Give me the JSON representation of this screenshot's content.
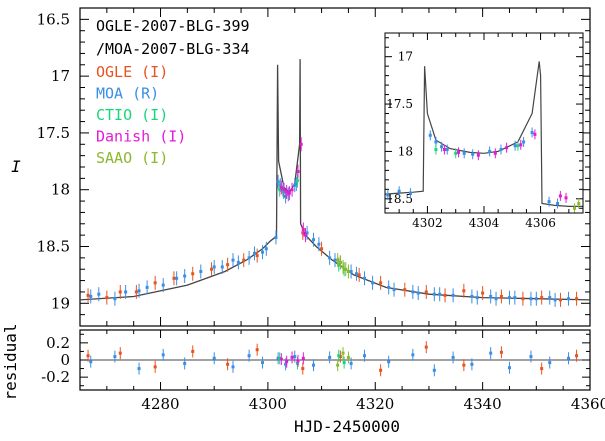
{
  "chart_data": [
    {
      "type": "scatter",
      "panel": "main",
      "title_lines": [
        "OGLE-2007-BLG-399",
        "/MOA-2007-BLG-334"
      ],
      "xlabel": "HJD-2450000",
      "ylabel": "I",
      "xlim": [
        4265,
        4360
      ],
      "ylim": [
        19.2,
        16.4
      ],
      "y_inverted": true,
      "xticks": [
        4280,
        4300,
        4320,
        4340,
        4360
      ],
      "yticks": [
        16.5,
        17,
        17.5,
        18,
        18.5,
        19
      ],
      "ytick_labels": [
        "16.5",
        "17",
        "17.5",
        "18",
        "18.5",
        "19"
      ],
      "legend_placement": "upper-left",
      "series": [
        {
          "name": "OGLE",
          "filter": "I",
          "color": "#e8531f",
          "x": [
            4266.5,
            4270.0,
            4272.5,
            4275.5,
            4279.0,
            4282.5,
            4286.0,
            4289.5,
            4292.5,
            4295.5,
            4298.0,
            4306.5,
            4310.0,
            4313.5,
            4317.0,
            4321.0,
            4325.5,
            4329.5,
            4333.0,
            4336.5,
            4340.0,
            4343.5,
            4347.5,
            4351.0,
            4354.5,
            4357.5
          ],
          "y": [
            18.93,
            18.95,
            18.9,
            18.9,
            18.82,
            18.78,
            18.74,
            18.7,
            18.66,
            18.62,
            18.58,
            18.38,
            18.52,
            18.64,
            18.75,
            18.82,
            18.88,
            18.9,
            18.93,
            18.89,
            18.91,
            18.94,
            18.96,
            18.95,
            18.97,
            18.96
          ]
        },
        {
          "name": "MOA",
          "filter": "R",
          "color": "#3b8ee6",
          "x": [
            4267.0,
            4268.5,
            4271.5,
            4273.5,
            4276.0,
            4277.5,
            4280.5,
            4283.0,
            4284.5,
            4287.5,
            4290.0,
            4291.5,
            4293.5,
            4294.5,
            4296.5,
            4297.5,
            4299.0,
            4299.7,
            4301.5,
            4301.9,
            4302.3,
            4302.8,
            4303.3,
            4303.8,
            4305.0,
            4305.3,
            4307.3,
            4308.5,
            4309.5,
            4311.5,
            4312.5,
            4315.5,
            4316.5,
            4318.0,
            4319.5,
            4322.5,
            4323.5,
            4327.0,
            4328.0,
            4331.0,
            4332.0,
            4334.5,
            4338.0,
            4339.0,
            4341.5,
            4342.5,
            4345.0,
            4346.0,
            4349.0,
            4350.0,
            4352.5,
            4353.5,
            4356.0
          ],
          "y": [
            18.94,
            18.92,
            18.96,
            18.9,
            18.89,
            18.86,
            18.84,
            18.78,
            18.76,
            18.72,
            18.68,
            18.68,
            18.62,
            18.64,
            18.6,
            18.56,
            18.55,
            18.52,
            18.42,
            17.93,
            17.96,
            18.0,
            18.06,
            18.04,
            17.96,
            17.95,
            18.38,
            18.44,
            18.48,
            18.6,
            18.62,
            18.72,
            18.74,
            18.78,
            18.82,
            18.86,
            18.88,
            18.9,
            18.91,
            18.92,
            18.92,
            18.93,
            18.94,
            18.95,
            18.94,
            18.96,
            18.95,
            18.95,
            18.96,
            18.96,
            18.95,
            18.97,
            18.96
          ]
        },
        {
          "name": "CTIO",
          "filter": "I",
          "color": "#1ad67a",
          "x": [
            4302.2,
            4302.9,
            4305.5,
            4313.2,
            4314.2
          ],
          "y": [
            18.0,
            18.02,
            17.92,
            18.66,
            18.7
          ]
        },
        {
          "name": "Danish",
          "filter": "I",
          "color": "#e31ad6",
          "x": [
            4302.5,
            4303.0,
            4303.5,
            4304.0,
            4304.5,
            4305.6,
            4306.2,
            4306.6,
            4307.0
          ],
          "y": [
            17.98,
            18.0,
            18.02,
            18.03,
            18.0,
            17.84,
            17.6,
            18.35,
            18.4
          ]
        },
        {
          "name": "SAAO",
          "filter": "I",
          "color": "#8cb82e",
          "x": [
            4313.0,
            4313.5,
            4314.0,
            4314.5,
            4315.0
          ],
          "y": [
            18.62,
            18.64,
            18.68,
            18.7,
            18.72
          ]
        }
      ],
      "model": {
        "name": "model",
        "color": "#444444",
        "x": [
          4265,
          4275,
          4285,
          4292,
          4296,
          4299,
          4300.5,
          4301.6,
          4301.8,
          4302.0,
          4303.0,
          4304.0,
          4305.0,
          4305.9,
          4306.0,
          4306.1,
          4307.0,
          4309.0,
          4312.0,
          4316.0,
          4322.0,
          4330.0,
          4340.0,
          4350.0,
          4360.0
        ],
        "y": [
          18.97,
          18.94,
          18.84,
          18.72,
          18.62,
          18.52,
          18.45,
          18.41,
          16.9,
          17.75,
          17.98,
          18.02,
          17.95,
          17.6,
          16.85,
          18.3,
          18.4,
          18.5,
          18.62,
          18.75,
          18.86,
          18.92,
          18.95,
          18.96,
          18.97
        ]
      }
    },
    {
      "type": "scatter",
      "panel": "residual",
      "ylabel": "residual",
      "xlabel": "HJD-2450000",
      "xlim": [
        4265,
        4360
      ],
      "ylim": [
        -0.35,
        0.35
      ],
      "yticks": [
        0.2,
        0,
        -0.2
      ],
      "ytick_labels": [
        "0.2",
        "0",
        "-0.2"
      ],
      "xticks": [
        4280,
        4300,
        4320,
        4340,
        4360
      ],
      "xtick_labels": [
        "4280",
        "4300",
        "4320",
        "4340",
        "4360"
      ],
      "series": [
        {
          "name": "OGLE",
          "color": "#e8531f",
          "x": [
            4266.5,
            4272.5,
            4279.0,
            4286.0,
            4292.5,
            4298.0,
            4306.5,
            4313.5,
            4321.0,
            4329.5,
            4336.5,
            4343.5,
            4351.0,
            4357.5
          ],
          "y": [
            0.05,
            0.08,
            -0.08,
            0.1,
            -0.05,
            0.12,
            -0.1,
            0.04,
            -0.12,
            0.15,
            -0.06,
            0.09,
            -0.1,
            0.05
          ]
        },
        {
          "name": "MOA",
          "color": "#3b8ee6",
          "x": [
            4267.0,
            4271.5,
            4276.0,
            4280.5,
            4284.5,
            4290.0,
            4293.5,
            4296.5,
            4299.0,
            4301.9,
            4303.3,
            4305.0,
            4308.5,
            4311.5,
            4315.5,
            4318.0,
            4322.5,
            4327.0,
            4331.0,
            4334.5,
            4338.0,
            4341.5,
            4345.0,
            4349.0,
            4352.5,
            4356.0
          ],
          "y": [
            -0.02,
            0.04,
            -0.1,
            0.06,
            -0.04,
            0.02,
            -0.08,
            0.05,
            -0.03,
            0.02,
            -0.05,
            0.04,
            -0.06,
            0.03,
            -0.04,
            0.05,
            -0.02,
            0.06,
            -0.12,
            0.03,
            -0.05,
            0.08,
            -0.09,
            0.04,
            -0.03,
            0.02
          ]
        },
        {
          "name": "CTIO",
          "color": "#1ad67a",
          "x": [
            4302.2,
            4305.5,
            4313.2,
            4314.2
          ],
          "y": [
            0.02,
            -0.04,
            0.05,
            -0.03
          ]
        },
        {
          "name": "Danish",
          "color": "#e31ad6",
          "x": [
            4302.5,
            4303.5,
            4304.5,
            4305.6,
            4306.6
          ],
          "y": [
            0.01,
            -0.02,
            0.03,
            -0.01,
            0.02
          ]
        },
        {
          "name": "SAAO",
          "color": "#8cb82e",
          "x": [
            4313.0,
            4314.0,
            4315.0
          ],
          "y": [
            -0.06,
            0.08,
            0.03
          ]
        }
      ]
    },
    {
      "type": "scatter",
      "panel": "inset",
      "xlim": [
        4300.5,
        4307.5
      ],
      "ylim": [
        18.65,
        16.75
      ],
      "y_inverted": true,
      "xticks": [
        4302,
        4304,
        4306
      ],
      "xtick_labels": [
        "4302",
        "4304",
        "4306"
      ],
      "yticks": [
        17,
        17.5,
        18,
        18.5
      ],
      "ytick_labels": [
        "17",
        "17.5",
        "18",
        "18.5"
      ],
      "series": [
        {
          "name": "MOA",
          "color": "#3b8ee6",
          "x": [
            4300.6,
            4301.0,
            4301.4,
            4302.1,
            4302.3,
            4302.5,
            4302.7,
            4303.3,
            4303.6,
            4304.2,
            4304.6,
            4305.1,
            4305.4,
            4305.7,
            4306.3,
            4306.6
          ],
          "y": [
            18.46,
            18.42,
            18.44,
            17.83,
            17.9,
            17.95,
            17.98,
            18.02,
            18.03,
            18.0,
            17.98,
            17.94,
            17.9,
            17.8,
            18.53,
            18.55
          ]
        },
        {
          "name": "CTIO",
          "color": "#1ad67a",
          "x": [
            4302.3,
            4303.0,
            4305.2
          ],
          "y": [
            17.98,
            18.02,
            17.94
          ]
        },
        {
          "name": "Danish",
          "color": "#e31ad6",
          "x": [
            4302.6,
            4303.1,
            4303.8,
            4304.4,
            4304.8,
            4305.3,
            4305.8,
            4306.7,
            4306.9
          ],
          "y": [
            17.98,
            18.01,
            18.04,
            18.02,
            17.96,
            17.93,
            17.82,
            18.47,
            18.49
          ]
        },
        {
          "name": "SAAO",
          "color": "#8cb82e",
          "x": [
            4307.2,
            4307.35
          ],
          "y": [
            18.6,
            18.55
          ]
        }
      ],
      "model": {
        "name": "model",
        "color": "#444444",
        "x": [
          4300.5,
          4301.0,
          4301.5,
          4301.85,
          4301.9,
          4302.0,
          4302.3,
          4302.8,
          4303.5,
          4304.0,
          4304.5,
          4305.2,
          4305.7,
          4305.95,
          4306.0,
          4306.05,
          4306.5,
          4307.0,
          4307.5
        ],
        "y": [
          18.45,
          18.44,
          18.43,
          18.42,
          17.1,
          17.6,
          17.88,
          17.97,
          18.01,
          18.02,
          18.0,
          17.9,
          17.6,
          17.05,
          17.2,
          18.55,
          18.57,
          18.58,
          18.58
        ]
      }
    }
  ],
  "legend": [
    {
      "label": "OGLE (I)",
      "color": "#e8531f"
    },
    {
      "label": "MOA (R)",
      "color": "#3b8ee6"
    },
    {
      "label": "CTIO (I)",
      "color": "#1ad67a"
    },
    {
      "label": "Danish (I)",
      "color": "#e31ad6"
    },
    {
      "label": "SAAO (I)",
      "color": "#8cb82e"
    }
  ]
}
